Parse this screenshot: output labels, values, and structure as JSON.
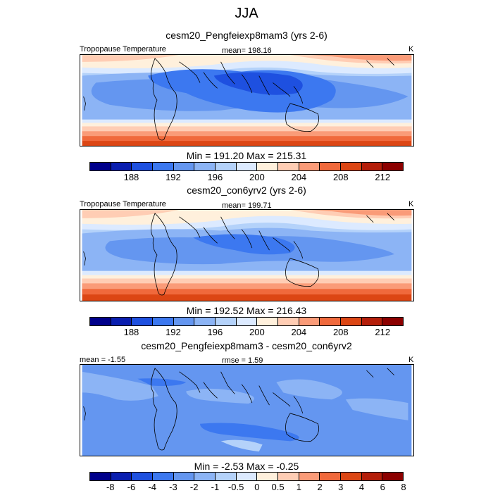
{
  "figure": {
    "title": "JJA",
    "units": "K"
  },
  "colors": {
    "seq": [
      "#00008b",
      "#0a1eb0",
      "#1e50e0",
      "#3c78f0",
      "#6496f0",
      "#8cb4f5",
      "#b4d2fa",
      "#dceaff",
      "#fff0dc",
      "#ffcdb4",
      "#fa9b78",
      "#f0693c",
      "#dc4614",
      "#b41e0a",
      "#8c0000"
    ],
    "diff": [
      "#00008b",
      "#0a1eb0",
      "#1e50e0",
      "#3c78f0",
      "#6496f0",
      "#8cb4f5",
      "#b4d2fa",
      "#dceaff",
      "#fff0dc",
      "#ffcdb4",
      "#fa9b78",
      "#f0693c",
      "#dc4614",
      "#b41e0a",
      "#8c0000"
    ]
  },
  "chart_data": [
    {
      "type": "heatmap",
      "title": "cesm20_Pengfeiexp8mam3 (yrs 2-6)",
      "left_label": "Tropopause Temperature",
      "center_label": "mean= 198.16",
      "right_label": "K",
      "min_max": "Min = 191.20 Max = 215.31",
      "mean": 198.16,
      "min": 191.2,
      "max": 215.31,
      "colorbar_levels": [
        188,
        192,
        196,
        200,
        204,
        208,
        212
      ],
      "colorbar_tick_labels": [
        "188",
        "192",
        "196",
        "200",
        "204",
        "208",
        "212"
      ],
      "colorbar_boundaries": [
        186,
        188,
        190,
        192,
        194,
        196,
        198,
        200,
        202,
        204,
        206,
        208,
        210,
        212,
        214
      ]
    },
    {
      "type": "heatmap",
      "title": "cesm20_con6yrv2 (yrs 2-6)",
      "left_label": "Tropopause Temperature",
      "center_label": "mean= 199.71",
      "right_label": "K",
      "min_max": "Min = 192.52 Max = 216.43",
      "mean": 199.71,
      "min": 192.52,
      "max": 216.43,
      "colorbar_levels": [
        188,
        192,
        196,
        200,
        204,
        208,
        212
      ],
      "colorbar_tick_labels": [
        "188",
        "192",
        "196",
        "200",
        "204",
        "208",
        "212"
      ],
      "colorbar_boundaries": [
        186,
        188,
        190,
        192,
        194,
        196,
        198,
        200,
        202,
        204,
        206,
        208,
        210,
        212,
        214
      ]
    },
    {
      "type": "heatmap",
      "title": "cesm20_Pengfeiexp8mam3 - cesm20_con6yrv2",
      "left_label": "mean =  -1.55",
      "center_label": "rmse =   1.59",
      "right_label": "K",
      "min_max": "Min =  -2.53 Max =  -0.25",
      "mean": -1.55,
      "rmse": 1.59,
      "min": -2.53,
      "max": -0.25,
      "colorbar_levels": [
        -8,
        -6,
        -4,
        -3,
        -2,
        -1,
        -0.5,
        0,
        0.5,
        1,
        2,
        3,
        4,
        6,
        8
      ],
      "colorbar_tick_labels": [
        "-8",
        "-6",
        "-4",
        "-3",
        "-2",
        "-1",
        "-0.5",
        "0",
        "0.5",
        "1",
        "2",
        "3",
        "4",
        "6",
        "8"
      ]
    }
  ]
}
